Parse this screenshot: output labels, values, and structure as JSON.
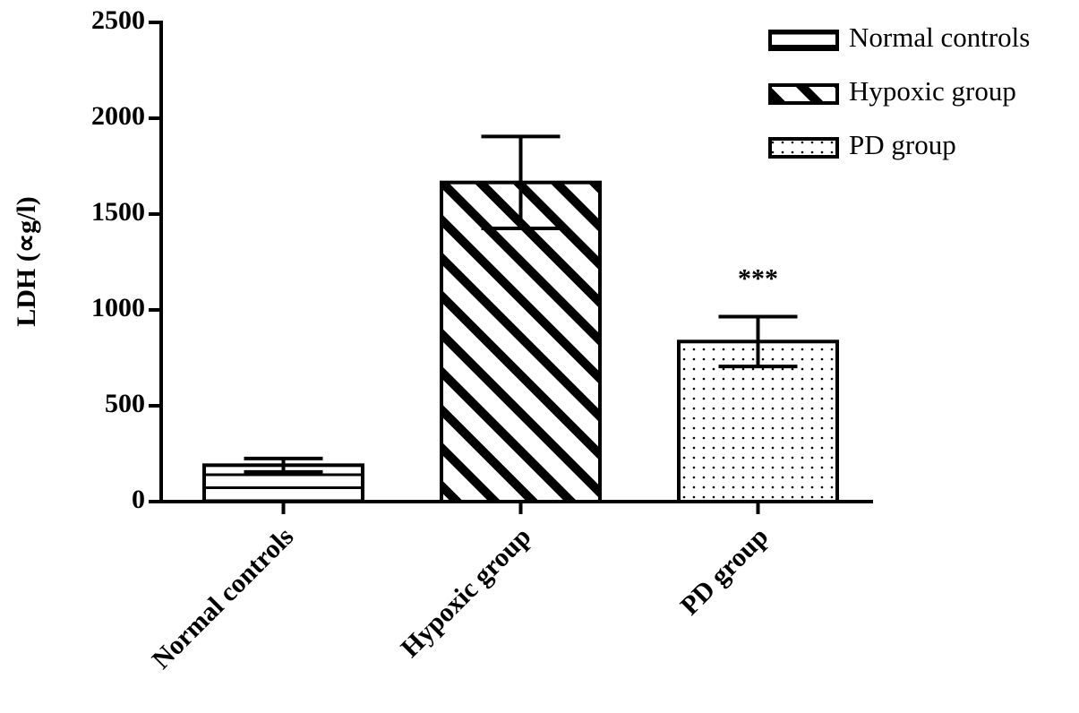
{
  "chart_data": {
    "type": "bar",
    "y_label": "LDH (∝g/l)",
    "categories": [
      "Normal controls",
      "Hypoxic group",
      "PD group"
    ],
    "values": [
      190,
      1665,
      835
    ],
    "errors": [
      35,
      240,
      130
    ],
    "patterns": [
      "horizontal",
      "diagonal",
      "dots"
    ],
    "color": "#000000",
    "ylim": [
      0,
      2500
    ],
    "yticks": [
      0,
      500,
      1000,
      1500,
      2000,
      2500
    ],
    "legend": "top-right",
    "annotations": [
      {
        "text": "***",
        "category": 2
      }
    ]
  }
}
